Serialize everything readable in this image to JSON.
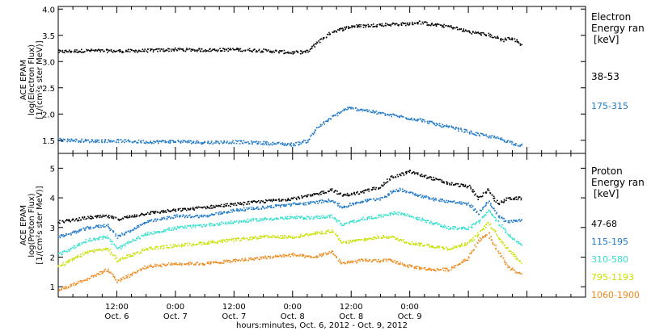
{
  "chart_data": [
    {
      "type": "scatter",
      "ylabel": [
        "ACE EPAM",
        "log(Electron Flux)",
        "[1/(cm²s ster MeV)]"
      ],
      "ylim": [
        1.25,
        4.05
      ],
      "yticks": [
        "1.5",
        "2.0",
        "2.5",
        "3.0",
        "3.5",
        "4.0"
      ],
      "yticks_values": [
        1.5,
        2.0,
        2.5,
        3.0,
        3.5,
        4.0
      ],
      "legend_title": [
        "Electron",
        "Energy ran",
        "[keV]"
      ],
      "series": [
        {
          "name": "38-53",
          "color": "#000000",
          "points": [
            [
              0,
              3.2
            ],
            [
              6,
              3.22
            ],
            [
              12,
              3.21
            ],
            [
              18,
              3.22
            ],
            [
              24,
              3.24
            ],
            [
              30,
              3.23
            ],
            [
              36,
              3.24
            ],
            [
              42,
              3.22
            ],
            [
              48,
              3.18
            ],
            [
              51,
              3.2
            ],
            [
              53,
              3.38
            ],
            [
              56,
              3.58
            ],
            [
              60,
              3.68
            ],
            [
              64,
              3.7
            ],
            [
              68,
              3.72
            ],
            [
              72,
              3.73
            ],
            [
              74,
              3.76
            ],
            [
              76,
              3.72
            ],
            [
              80,
              3.68
            ],
            [
              84,
              3.58
            ],
            [
              88,
              3.52
            ],
            [
              91,
              3.42
            ],
            [
              92,
              3.46
            ],
            [
              94,
              3.4
            ],
            [
              95,
              3.3
            ]
          ]
        },
        {
          "name": "175-315",
          "color": "#1f78c8",
          "points": [
            [
              0,
              1.52
            ],
            [
              6,
              1.5
            ],
            [
              12,
              1.5
            ],
            [
              18,
              1.48
            ],
            [
              24,
              1.49
            ],
            [
              30,
              1.47
            ],
            [
              36,
              1.48
            ],
            [
              42,
              1.46
            ],
            [
              48,
              1.43
            ],
            [
              51,
              1.5
            ],
            [
              53,
              1.75
            ],
            [
              56,
              1.95
            ],
            [
              59,
              2.12
            ],
            [
              62,
              2.1
            ],
            [
              66,
              2.02
            ],
            [
              70,
              1.96
            ],
            [
              74,
              1.9
            ],
            [
              78,
              1.8
            ],
            [
              82,
              1.72
            ],
            [
              86,
              1.62
            ],
            [
              90,
              1.55
            ],
            [
              95,
              1.4
            ]
          ]
        }
      ]
    },
    {
      "type": "scatter",
      "ylabel": [
        "ACE EPAM",
        "log(Proton Flux)",
        "[1/(cm²s ster MeV)]"
      ],
      "ylim": [
        0.65,
        5.5
      ],
      "yticks": [
        "1",
        "2",
        "3",
        "4",
        "5"
      ],
      "yticks_values": [
        1,
        2,
        3,
        4,
        5
      ],
      "legend_title": [
        "Proton",
        "Energy ran",
        "[keV]"
      ],
      "series": [
        {
          "name": "47-68",
          "color": "#000000",
          "points": [
            [
              0,
              3.2
            ],
            [
              6,
              3.35
            ],
            [
              10,
              3.4
            ],
            [
              12,
              3.3
            ],
            [
              18,
              3.5
            ],
            [
              24,
              3.6
            ],
            [
              30,
              3.7
            ],
            [
              36,
              3.8
            ],
            [
              42,
              3.9
            ],
            [
              48,
              4.0
            ],
            [
              52,
              4.1
            ],
            [
              56,
              4.3
            ],
            [
              58,
              4.1
            ],
            [
              62,
              4.2
            ],
            [
              66,
              4.4
            ],
            [
              68,
              4.7
            ],
            [
              70,
              4.8
            ],
            [
              72,
              4.9
            ],
            [
              76,
              4.7
            ],
            [
              80,
              4.5
            ],
            [
              84,
              4.4
            ],
            [
              86,
              4.0
            ],
            [
              88,
              4.3
            ],
            [
              90,
              3.8
            ],
            [
              92,
              4.0
            ],
            [
              95,
              4.0
            ]
          ]
        },
        {
          "name": "115-195",
          "color": "#1f78c8",
          "points": [
            [
              0,
              2.7
            ],
            [
              6,
              3.0
            ],
            [
              10,
              3.1
            ],
            [
              12,
              2.7
            ],
            [
              18,
              3.2
            ],
            [
              24,
              3.4
            ],
            [
              30,
              3.4
            ],
            [
              36,
              3.6
            ],
            [
              42,
              3.7
            ],
            [
              48,
              3.8
            ],
            [
              52,
              3.85
            ],
            [
              56,
              3.95
            ],
            [
              58,
              3.7
            ],
            [
              62,
              3.9
            ],
            [
              66,
              4.0
            ],
            [
              68,
              4.2
            ],
            [
              70,
              4.3
            ],
            [
              72,
              4.2
            ],
            [
              76,
              4.0
            ],
            [
              80,
              3.9
            ],
            [
              84,
              3.8
            ],
            [
              86,
              3.5
            ],
            [
              88,
              3.9
            ],
            [
              90,
              3.4
            ],
            [
              92,
              3.2
            ],
            [
              95,
              3.3
            ]
          ]
        },
        {
          "name": "310-580",
          "color": "#33e0cc",
          "points": [
            [
              0,
              2.1
            ],
            [
              6,
              2.6
            ],
            [
              10,
              2.7
            ],
            [
              12,
              2.3
            ],
            [
              18,
              2.8
            ],
            [
              24,
              3.0
            ],
            [
              30,
              3.1
            ],
            [
              36,
              3.2
            ],
            [
              42,
              3.3
            ],
            [
              48,
              3.35
            ],
            [
              52,
              3.35
            ],
            [
              56,
              3.4
            ],
            [
              58,
              3.1
            ],
            [
              62,
              3.3
            ],
            [
              66,
              3.4
            ],
            [
              68,
              3.5
            ],
            [
              70,
              3.5
            ],
            [
              72,
              3.4
            ],
            [
              76,
              3.2
            ],
            [
              80,
              3.0
            ],
            [
              84,
              3.0
            ],
            [
              86,
              3.2
            ],
            [
              88,
              3.6
            ],
            [
              90,
              3.2
            ],
            [
              92,
              2.8
            ],
            [
              95,
              2.4
            ]
          ]
        },
        {
          "name": "795-1193",
          "color": "#c8e000",
          "points": [
            [
              0,
              1.7
            ],
            [
              6,
              2.2
            ],
            [
              10,
              2.3
            ],
            [
              12,
              1.9
            ],
            [
              18,
              2.3
            ],
            [
              24,
              2.4
            ],
            [
              30,
              2.5
            ],
            [
              36,
              2.6
            ],
            [
              42,
              2.7
            ],
            [
              48,
              2.7
            ],
            [
              52,
              2.8
            ],
            [
              56,
              2.9
            ],
            [
              58,
              2.5
            ],
            [
              62,
              2.6
            ],
            [
              66,
              2.7
            ],
            [
              68,
              2.7
            ],
            [
              70,
              2.6
            ],
            [
              72,
              2.5
            ],
            [
              76,
              2.4
            ],
            [
              80,
              2.3
            ],
            [
              84,
              2.5
            ],
            [
              86,
              2.8
            ],
            [
              88,
              3.2
            ],
            [
              90,
              2.7
            ],
            [
              92,
              2.3
            ],
            [
              95,
              1.8
            ]
          ]
        },
        {
          "name": "1060-1900",
          "color": "#f08a1c",
          "points": [
            [
              0,
              0.9
            ],
            [
              6,
              1.3
            ],
            [
              10,
              1.6
            ],
            [
              12,
              1.2
            ],
            [
              18,
              1.7
            ],
            [
              24,
              1.8
            ],
            [
              30,
              1.8
            ],
            [
              36,
              1.9
            ],
            [
              42,
              2.0
            ],
            [
              48,
              2.1
            ],
            [
              52,
              2.0
            ],
            [
              56,
              2.2
            ],
            [
              58,
              1.8
            ],
            [
              62,
              1.9
            ],
            [
              66,
              1.9
            ],
            [
              68,
              1.9
            ],
            [
              70,
              1.8
            ],
            [
              72,
              1.7
            ],
            [
              76,
              1.6
            ],
            [
              80,
              1.6
            ],
            [
              84,
              2.0
            ],
            [
              86,
              2.6
            ],
            [
              88,
              2.8
            ],
            [
              90,
              2.2
            ],
            [
              92,
              1.7
            ],
            [
              95,
              1.4
            ]
          ]
        }
      ]
    }
  ],
  "xaxis": {
    "range": [
      0,
      108
    ],
    "tick_hours": [
      0,
      12,
      24,
      36,
      48,
      60,
      72,
      84,
      96,
      108
    ],
    "labels": [
      {
        "hour": 12,
        "time": "12:00",
        "date": "Oct. 6"
      },
      {
        "hour": 24,
        "time": "0:00",
        "date": "Oct. 7"
      },
      {
        "hour": 36,
        "time": "12:00",
        "date": "Oct. 7"
      },
      {
        "hour": 48,
        "time": "0:00",
        "date": "Oct. 8"
      },
      {
        "hour": 60,
        "time": "12:00",
        "date": "Oct. 8"
      },
      {
        "hour": 72,
        "time": "0:00",
        "date": "Oct. 9"
      }
    ],
    "title": "hours:minutes, Oct.  6, 2012 - Oct.  9, 2012"
  }
}
